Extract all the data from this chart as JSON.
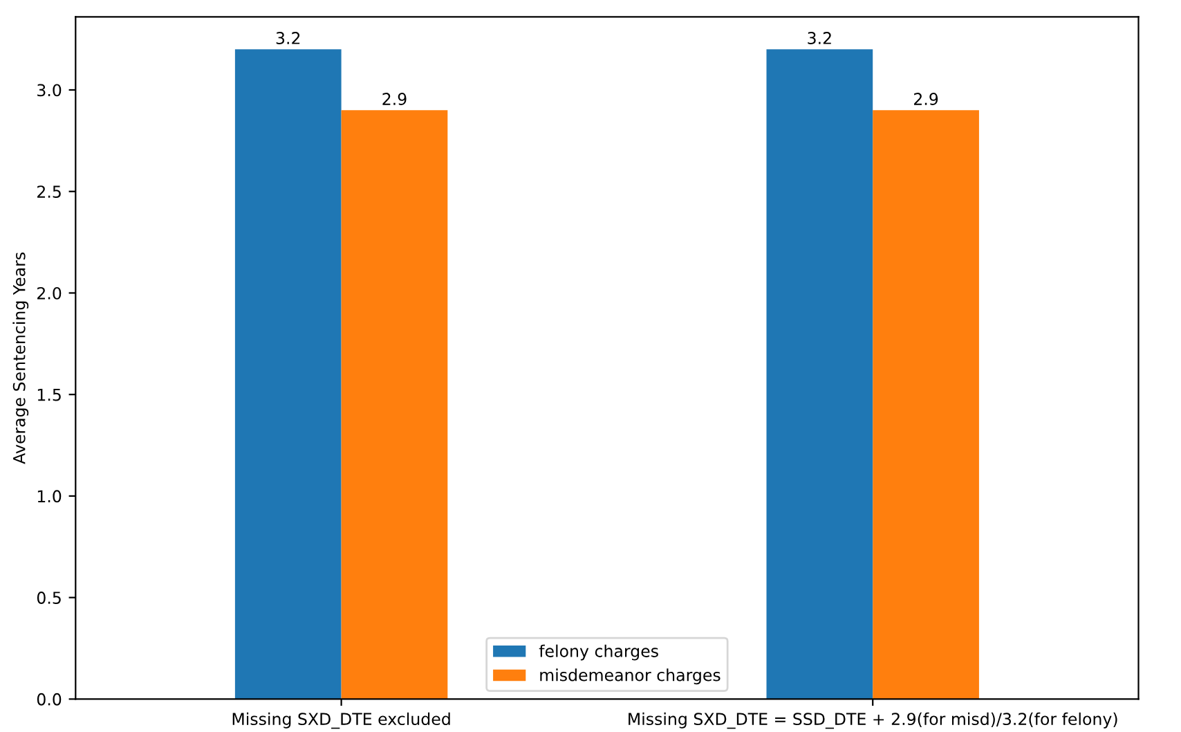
{
  "chart_data": {
    "type": "bar",
    "ylabel": "Average Sentencing Years",
    "categories": [
      "Missing SXD_DTE excluded",
      "Missing SXD_DTE = SSD_DTE + 2.9(for misd)/3.2(for felony)"
    ],
    "series": [
      {
        "name": "felony charges",
        "color": "#1f77b4",
        "values": [
          3.2,
          3.2
        ]
      },
      {
        "name": "misdemeanor charges",
        "color": "#ff7f0e",
        "values": [
          2.9,
          2.9
        ]
      }
    ],
    "ylim": [
      0,
      3.36
    ],
    "yticks": [
      {
        "value": 0,
        "label": "0.0"
      },
      0.5,
      {
        "value": 1,
        "label": "1.0"
      },
      1.5,
      {
        "value": 2,
        "label": "2.0"
      },
      2.5,
      {
        "value": 3,
        "label": "3.0"
      }
    ],
    "data_labels": true,
    "legend": "bottom",
    "grid": false
  }
}
